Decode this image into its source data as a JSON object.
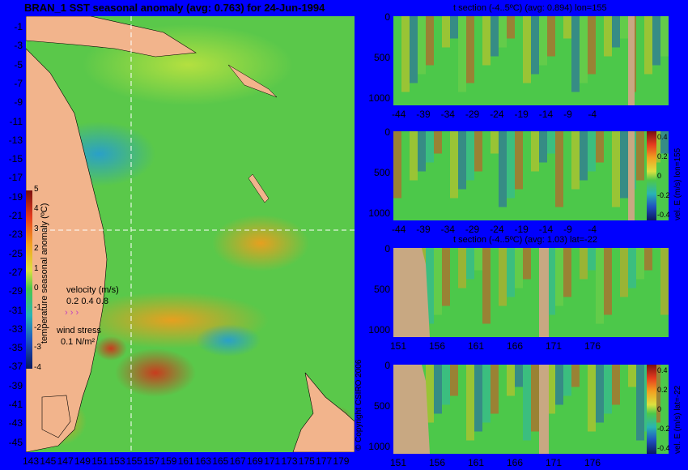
{
  "map": {
    "title": "BRAN_1 SST seasonal anomaly (avg: 0.763) for 24-Jun-1994",
    "lat_ticks": [
      "-1",
      "-3",
      "-5",
      "-7",
      "-9",
      "-11",
      "-13",
      "-15",
      "-17",
      "-19",
      "-21",
      "-23",
      "-25",
      "-27",
      "-29",
      "-31",
      "-33",
      "-35",
      "-37",
      "-39",
      "-41",
      "-43",
      "-45"
    ],
    "lon_ticks": [
      "143",
      "145",
      "147",
      "149",
      "151",
      "153",
      "155",
      "157",
      "159",
      "161",
      "163",
      "165",
      "167",
      "169",
      "171",
      "173",
      "175",
      "177",
      "179"
    ],
    "colorbar_label": "temperature seasonal anomaly (ºC)",
    "colorbar_ticks": [
      "5",
      "4",
      "3",
      "2",
      "1",
      "0",
      "-1",
      "-2",
      "-3",
      "-4"
    ],
    "velocity_label": "velocity (m/s)",
    "velocity_scale": "0.2 0.4 0.8",
    "wind_label": "wind stress",
    "wind_scale": "0.1 N/m²",
    "copyright": "© Copyright CSIRO 2006"
  },
  "panels": [
    {
      "title": "t section (-4..5ºC) (avg: 0.894) lon=155",
      "y_ticks": [
        "0",
        "500",
        "1000"
      ],
      "x_ticks": [
        "-44",
        "-39",
        "-34",
        "-29",
        "-24",
        "-19",
        "-14",
        "-9",
        "-4"
      ]
    },
    {
      "title": "",
      "y_ticks": [
        "0",
        "500",
        "1000"
      ],
      "x_ticks": [
        "-44",
        "-39",
        "-34",
        "-29",
        "-24",
        "-19",
        "-14",
        "-9",
        "-4"
      ],
      "colorbar_label": "vel. E (m/s) lon=155",
      "colorbar_ticks": [
        "0.4",
        "0.2",
        "0",
        "-0.2",
        "-0.4"
      ]
    },
    {
      "title": "t section (-4..5ºC) (avg: 1.03) lat=-22",
      "y_ticks": [
        "0",
        "500",
        "1000"
      ],
      "x_ticks": [
        "151",
        "156",
        "161",
        "166",
        "171",
        "176"
      ]
    },
    {
      "title": "",
      "y_ticks": [
        "0",
        "500",
        "1000"
      ],
      "x_ticks": [
        "151",
        "156",
        "161",
        "166",
        "171",
        "176"
      ],
      "colorbar_label": "vel. E (m/s) lat=-22",
      "colorbar_ticks": [
        "0.4",
        "0.2",
        "0",
        "-0.2",
        "-0.4"
      ]
    }
  ],
  "colors": {
    "background": "#0000fe",
    "land": "#f2b48c",
    "section_land": "#c8a882",
    "anomaly_low": "#1f4fbf",
    "anomaly_mid": "#4cc84a",
    "anomaly_high": "#e63c1e"
  }
}
